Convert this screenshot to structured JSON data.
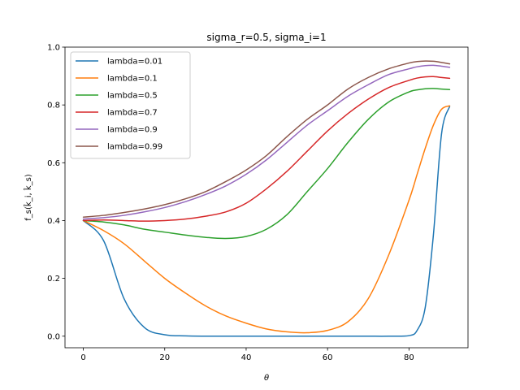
{
  "chart_data": {
    "type": "line",
    "title": "sigma_r=0.5, sigma_i=1",
    "xlabel": "θ",
    "ylabel": "f_s(k̂_i, k̂_s)",
    "xlim": [
      -4.5,
      94.5
    ],
    "ylim": [
      -0.04,
      1.0
    ],
    "xticks": [
      0,
      20,
      40,
      60,
      80
    ],
    "yticks": [
      0.0,
      0.2,
      0.4,
      0.6,
      0.8,
      1.0
    ],
    "xtick_labels": [
      "0",
      "20",
      "40",
      "60",
      "80"
    ],
    "ytick_labels": [
      "0.0",
      "0.2",
      "0.4",
      "0.6",
      "0.8",
      "1.0"
    ],
    "grid": false,
    "legend_position": "top-left",
    "x": [
      0,
      5,
      10,
      15,
      20,
      25,
      30,
      35,
      40,
      45,
      50,
      55,
      60,
      65,
      70,
      75,
      80,
      82,
      84,
      86,
      88,
      90
    ],
    "series": [
      {
        "name": "lambda=0.01",
        "color": "#1f77b4",
        "values": [
          0.4,
          0.33,
          0.13,
          0.03,
          0.005,
          0.001,
          0.0,
          0.0,
          0.0,
          0.0,
          0.0,
          0.0,
          0.0,
          0.0,
          0.0,
          0.0,
          0.002,
          0.02,
          0.1,
          0.35,
          0.7,
          0.795
        ]
      },
      {
        "name": "lambda=0.1",
        "color": "#ff7f0e",
        "values": [
          0.4,
          0.365,
          0.32,
          0.26,
          0.2,
          0.15,
          0.105,
          0.07,
          0.045,
          0.025,
          0.015,
          0.012,
          0.02,
          0.05,
          0.13,
          0.28,
          0.47,
          0.56,
          0.65,
          0.73,
          0.785,
          0.797
        ]
      },
      {
        "name": "lambda=0.5",
        "color": "#2ca02c",
        "values": [
          0.4,
          0.395,
          0.385,
          0.37,
          0.36,
          0.35,
          0.342,
          0.338,
          0.345,
          0.37,
          0.42,
          0.5,
          0.58,
          0.67,
          0.75,
          0.81,
          0.845,
          0.852,
          0.856,
          0.857,
          0.855,
          0.853
        ]
      },
      {
        "name": "lambda=0.7",
        "color": "#d62728",
        "values": [
          0.4,
          0.402,
          0.4,
          0.398,
          0.4,
          0.405,
          0.415,
          0.43,
          0.46,
          0.51,
          0.57,
          0.64,
          0.71,
          0.77,
          0.82,
          0.86,
          0.885,
          0.893,
          0.897,
          0.898,
          0.895,
          0.892
        ]
      },
      {
        "name": "lambda=0.9",
        "color": "#9467bd",
        "values": [
          0.405,
          0.41,
          0.418,
          0.43,
          0.445,
          0.465,
          0.49,
          0.52,
          0.56,
          0.61,
          0.67,
          0.73,
          0.78,
          0.83,
          0.87,
          0.905,
          0.925,
          0.932,
          0.936,
          0.937,
          0.934,
          0.93
        ]
      },
      {
        "name": "lambda=0.99",
        "color": "#8c564b",
        "values": [
          0.412,
          0.418,
          0.428,
          0.44,
          0.455,
          0.475,
          0.5,
          0.535,
          0.575,
          0.625,
          0.69,
          0.75,
          0.8,
          0.855,
          0.895,
          0.925,
          0.945,
          0.95,
          0.952,
          0.951,
          0.947,
          0.942
        ]
      }
    ]
  }
}
